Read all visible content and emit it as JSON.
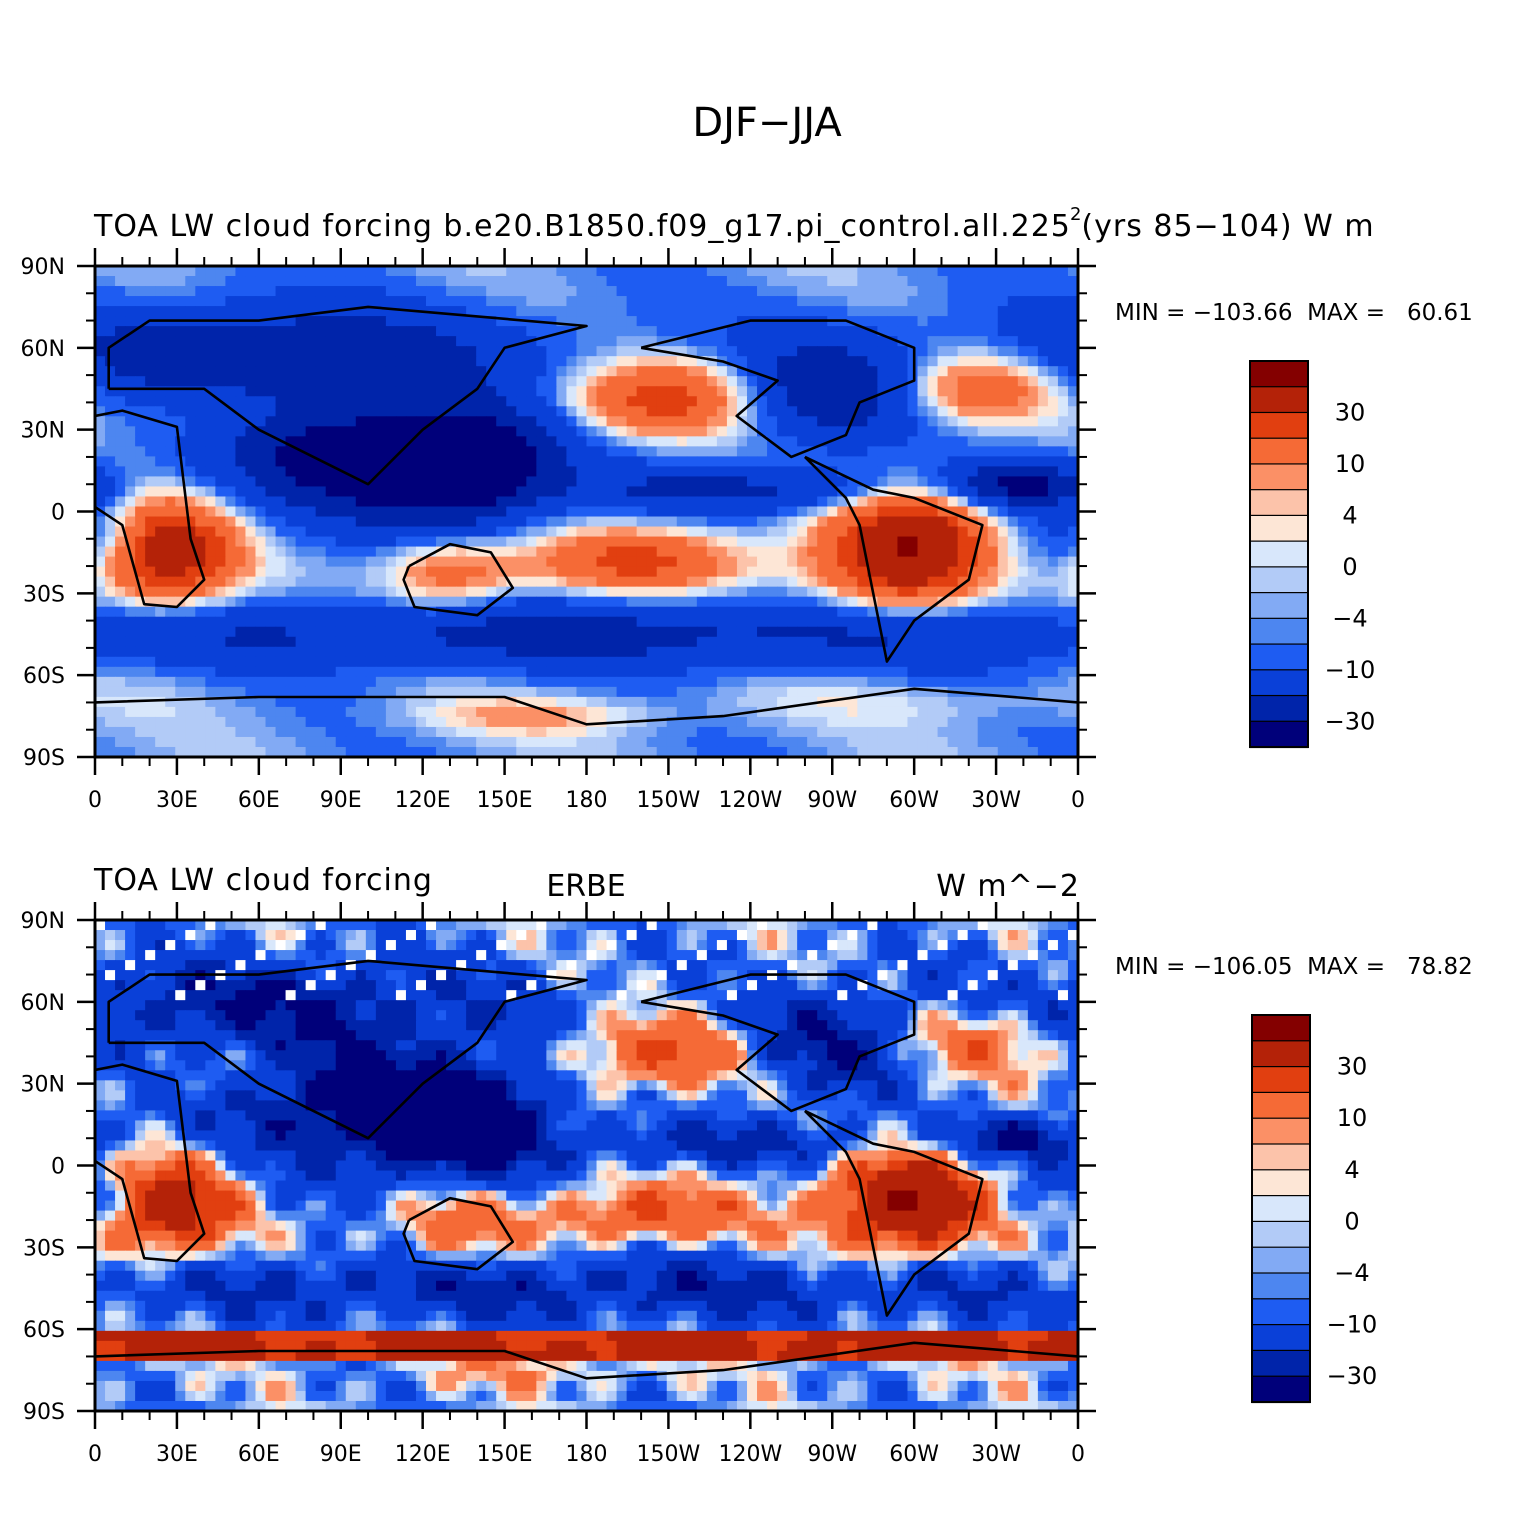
{
  "figure": {
    "title": "DJF−JJA"
  },
  "palette": [
    "#00007a",
    "#0024aa",
    "#0a40d8",
    "#1e5cf2",
    "#4d86f0",
    "#82aaf4",
    "#b2cbf7",
    "#d8e7fb",
    "#fde6d6",
    "#fcc3aa",
    "#fb9066",
    "#f56a36",
    "#e13f10",
    "#b42208",
    "#840000"
  ],
  "colorbar_labels": [
    "30",
    "10",
    "4",
    "0",
    "−4",
    "−10",
    "−30"
  ],
  "panels": [
    {
      "id": "top",
      "overlay_text": "TOA LW cloud forcing   b.e20.B1850.f09_g17.pi_control.all.225 (yrs 85−104)   W m",
      "unit_superscript": "2",
      "stats": "MIN = −103.66  MAX =   60.61"
    },
    {
      "id": "bottom",
      "left_title": "TOA LW cloud forcing",
      "center_title": "ERBE",
      "right_title": "W m^−2",
      "stats": "MIN = −106.05  MAX =   78.82"
    }
  ],
  "y_ticks": [
    "90N",
    "60N",
    "30N",
    "0",
    "30S",
    "60S",
    "90S"
  ],
  "x_ticks": [
    "0",
    "30E",
    "60E",
    "90E",
    "120E",
    "150E",
    "180",
    "150W",
    "120W",
    "90W",
    "60W",
    "30W",
    "0"
  ]
}
